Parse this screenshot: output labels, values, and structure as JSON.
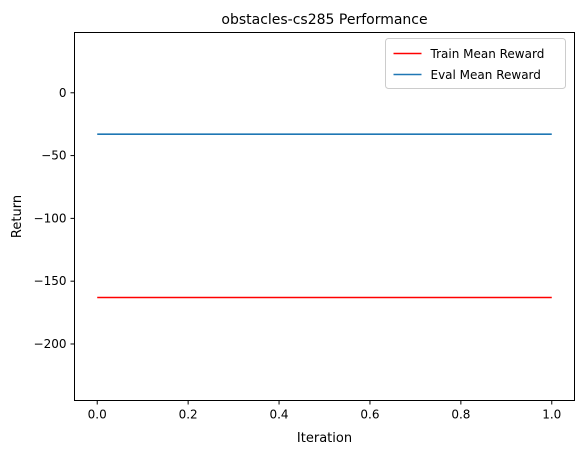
{
  "chart_data": {
    "type": "line",
    "title": "obstacles-cs285 Performance",
    "xlabel": "Iteration",
    "ylabel": "Return",
    "xlim": [
      -0.05,
      1.05
    ],
    "ylim": [
      -245,
      48
    ],
    "xticks": [
      0.0,
      0.2,
      0.4,
      0.6,
      0.8,
      1.0
    ],
    "xtick_labels": [
      "0.0",
      "0.2",
      "0.4",
      "0.6",
      "0.8",
      "1.0"
    ],
    "yticks": [
      0,
      -50,
      -100,
      -150,
      -200
    ],
    "ytick_labels": [
      "0",
      "−50",
      "−100",
      "−150",
      "−200"
    ],
    "grid": false,
    "legend_position": "top-right",
    "series": [
      {
        "name": "Train Mean Reward",
        "color": "#ff0000",
        "x": [
          0.0,
          1.0
        ],
        "y": [
          -163,
          -163
        ]
      },
      {
        "name": "Eval Mean Reward",
        "color": "#1f77b4",
        "x": [
          0.0,
          1.0
        ],
        "y": [
          -33,
          -33
        ]
      }
    ]
  }
}
